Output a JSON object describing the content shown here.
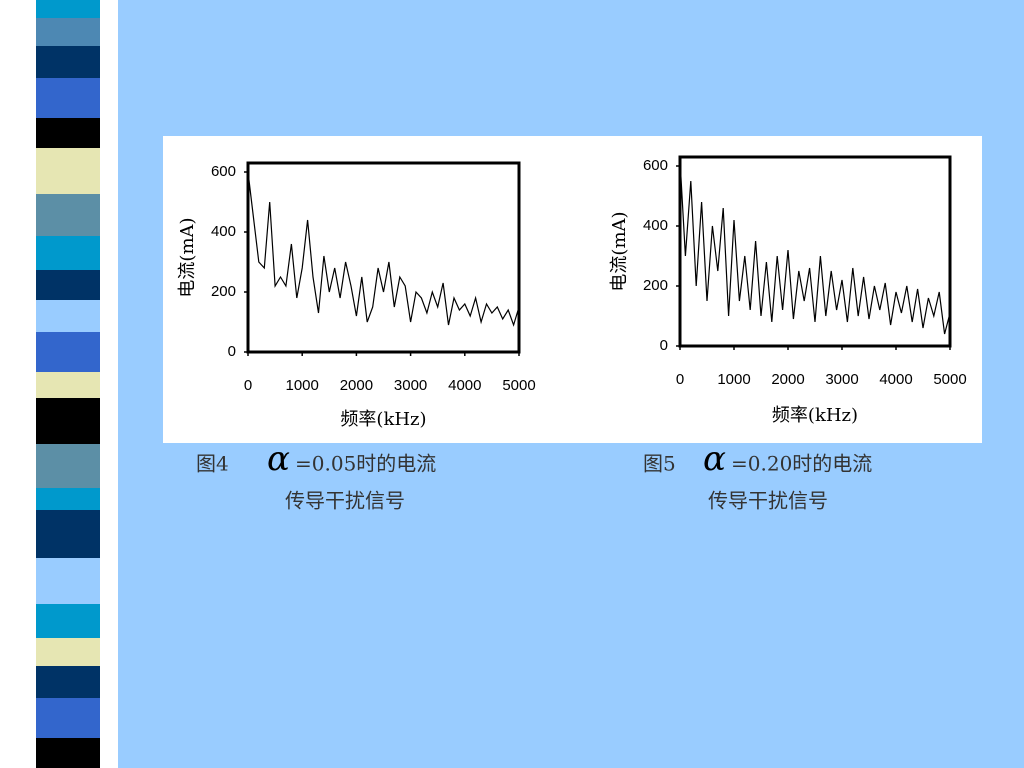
{
  "chart_data": [
    {
      "type": "line",
      "y_label": "电流(mA)",
      "x_label": "频率(kHz)",
      "figure_label": "图4",
      "symbol": "α",
      "caption": "=0.05时的电流",
      "caption2": "传导干扰信号",
      "color": "#000000",
      "x": [
        0,
        100,
        200,
        300,
        400,
        500,
        600,
        700,
        800,
        900,
        1000,
        1100,
        1200,
        1300,
        1400,
        1500,
        1600,
        1700,
        1800,
        1900,
        2000,
        2100,
        2200,
        2300,
        2400,
        2500,
        2600,
        2700,
        2800,
        2900,
        3000,
        3100,
        3200,
        3300,
        3400,
        3500,
        3600,
        3700,
        3800,
        3900,
        4000,
        4100,
        4200,
        4300,
        4400,
        4500,
        4600,
        4700,
        4800,
        4900,
        5000
      ],
      "values": [
        600,
        450,
        300,
        280,
        500,
        220,
        250,
        220,
        360,
        180,
        280,
        440,
        250,
        130,
        320,
        200,
        280,
        180,
        300,
        220,
        120,
        250,
        100,
        150,
        280,
        200,
        300,
        150,
        250,
        220,
        100,
        200,
        180,
        130,
        200,
        150,
        230,
        90,
        180,
        140,
        160,
        120,
        180,
        100,
        160,
        130,
        150,
        110,
        140,
        90,
        150
      ],
      "xlim": [
        0,
        5000
      ],
      "ylim": [
        0,
        630
      ],
      "xticks": [
        0,
        1000,
        2000,
        3000,
        4000,
        5000
      ],
      "yticks": [
        0,
        200,
        400,
        600
      ]
    },
    {
      "type": "line",
      "y_label": "电流(mA)",
      "x_label": "频率(kHz)",
      "figure_label": "图5",
      "symbol": "α",
      "caption": "=0.20时的电流",
      "caption2": "传导干扰信号",
      "color": "#000000",
      "x": [
        0,
        100,
        200,
        300,
        400,
        500,
        600,
        700,
        800,
        900,
        1000,
        1100,
        1200,
        1300,
        1400,
        1500,
        1600,
        1700,
        1800,
        1900,
        2000,
        2100,
        2200,
        2300,
        2400,
        2500,
        2600,
        2700,
        2800,
        2900,
        3000,
        3100,
        3200,
        3300,
        3400,
        3500,
        3600,
        3700,
        3800,
        3900,
        4000,
        4100,
        4200,
        4300,
        4400,
        4500,
        4600,
        4700,
        4800,
        4900,
        5000
      ],
      "values": [
        620,
        300,
        550,
        200,
        480,
        150,
        400,
        250,
        460,
        100,
        420,
        150,
        300,
        120,
        350,
        100,
        280,
        80,
        300,
        120,
        320,
        90,
        250,
        150,
        260,
        80,
        300,
        100,
        250,
        120,
        220,
        80,
        260,
        100,
        230,
        90,
        200,
        120,
        210,
        70,
        180,
        110,
        200,
        80,
        190,
        60,
        160,
        100,
        180,
        40,
        110
      ],
      "xlim": [
        0,
        5000
      ],
      "ylim": [
        0,
        630
      ],
      "xticks": [
        0,
        1000,
        2000,
        3000,
        4000,
        5000
      ],
      "yticks": [
        0,
        200,
        400,
        600
      ]
    }
  ]
}
